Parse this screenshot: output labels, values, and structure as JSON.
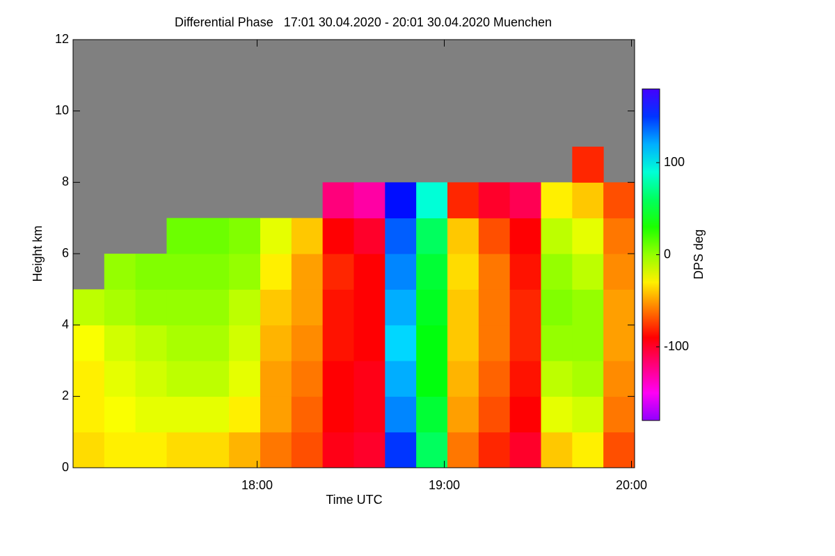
{
  "chart_data": {
    "type": "heatmap",
    "title": "Differential Phase   17:01 30.04.2020 - 20:01 30.04.2020 Muenchen",
    "x_label": "Time UTC",
    "y_label": "Height km",
    "colorbar_label": "DPS deg",
    "xlim": [
      17.0167,
      20.0167
    ],
    "xticks": [
      {
        "value": 18,
        "label": "18:00"
      },
      {
        "value": 19,
        "label": "19:00"
      },
      {
        "value": 20,
        "label": "20:00"
      }
    ],
    "ylim": [
      0,
      12
    ],
    "yticks": [
      0,
      2,
      4,
      6,
      8,
      10,
      12
    ],
    "clim": [
      -180,
      180
    ],
    "cticks": [
      -100,
      0,
      100
    ],
    "nodata_color": "#808080",
    "x": [
      17.1,
      17.2667,
      17.4333,
      17.6,
      17.7667,
      17.9333,
      18.1,
      18.2667,
      18.4333,
      18.6,
      18.7667,
      18.9333,
      19.1,
      19.2667,
      19.4333,
      19.6,
      19.7667,
      19.9333
    ],
    "y": [
      0.5,
      1.5,
      2.5,
      3.5,
      4.5,
      5.5,
      6.5,
      7.5,
      8.5
    ],
    "z": [
      [
        -35,
        -30,
        -30,
        -25,
        -10,
        null,
        null,
        null,
        null
      ],
      [
        -30,
        -25,
        -20,
        -15,
        -5,
        0,
        null,
        null,
        null
      ],
      [
        -30,
        -20,
        -15,
        -10,
        0,
        5,
        null,
        null,
        null
      ],
      [
        -35,
        -20,
        -10,
        -5,
        0,
        5,
        10,
        null,
        null
      ],
      [
        -35,
        -20,
        -10,
        -5,
        0,
        5,
        10,
        null,
        null
      ],
      [
        -45,
        -30,
        -20,
        -15,
        -10,
        0,
        5,
        null,
        null
      ],
      [
        -60,
        -50,
        -50,
        -45,
        -40,
        -30,
        -20,
        null,
        null
      ],
      [
        -70,
        -65,
        -60,
        -55,
        -50,
        -50,
        -40,
        null,
        null
      ],
      [
        -95,
        -90,
        -90,
        -85,
        -85,
        -80,
        -90,
        -120,
        null
      ],
      [
        -100,
        -95,
        -95,
        -90,
        -90,
        -90,
        -100,
        -130,
        null
      ],
      [
        150,
        130,
        120,
        110,
        120,
        130,
        140,
        160,
        null
      ],
      [
        60,
        50,
        40,
        40,
        45,
        50,
        60,
        90,
        null
      ],
      [
        -60,
        -50,
        -45,
        -40,
        -40,
        -35,
        -40,
        -80,
        null
      ],
      [
        -80,
        -70,
        -65,
        -60,
        -60,
        -60,
        -70,
        -100,
        null
      ],
      [
        -100,
        -90,
        -85,
        -80,
        -80,
        -85,
        -90,
        -110,
        null
      ],
      [
        -40,
        -20,
        -10,
        0,
        5,
        0,
        -10,
        -30,
        null
      ],
      [
        -30,
        -15,
        -5,
        0,
        0,
        -10,
        -20,
        -40,
        -80
      ],
      [
        -70,
        -60,
        -55,
        -50,
        -50,
        -55,
        -60,
        -70,
        null
      ]
    ]
  }
}
